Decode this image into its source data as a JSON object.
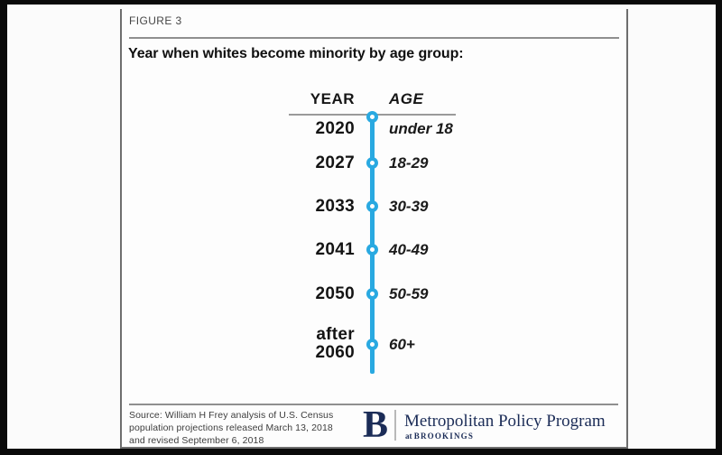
{
  "figure": {
    "label": "FIGURE 3",
    "title": "Year when whites become minority by age group:"
  },
  "chart_data": {
    "type": "table",
    "title": "Year when whites become minority by age group",
    "columns": [
      "YEAR",
      "AGE"
    ],
    "rows": [
      {
        "year": "2020",
        "age": "under 18"
      },
      {
        "year": "2027",
        "age": "18-29"
      },
      {
        "year": "2033",
        "age": "30-39"
      },
      {
        "year": "2041",
        "age": "40-49"
      },
      {
        "year": "2050",
        "age": "50-59"
      },
      {
        "year": "after 2060",
        "age": "60+"
      }
    ],
    "layout": "vertical-timeline",
    "timeline_color": "#29a9e1"
  },
  "timeline": {
    "year_header": "YEAR",
    "age_header": "AGE",
    "rows": [
      {
        "year": "2020",
        "age": "under 18"
      },
      {
        "year": "2027",
        "age": "18-29"
      },
      {
        "year": "2033",
        "age": "30-39"
      },
      {
        "year": "2041",
        "age": "40-49"
      },
      {
        "year": "2050",
        "age": "50-59"
      },
      {
        "year": "after\n2060",
        "age": "60+"
      }
    ]
  },
  "footer": {
    "source_line1": "Source: William H Frey analysis of U.S. Census",
    "source_line2": "population projections released March 13, 2018",
    "source_line3": "and revised September 6, 2018",
    "logo": {
      "initial": "B",
      "program_name": "Metropolitan Policy Program",
      "tagline_prefix": "at ",
      "tagline_org": "BROOKINGS"
    }
  },
  "colors": {
    "timeline_blue": "#29a9e1",
    "brookings_navy": "#1b2c57",
    "text_dark": "#141414",
    "muted_gray": "#454545",
    "frame_black": "#0a0a0a"
  }
}
